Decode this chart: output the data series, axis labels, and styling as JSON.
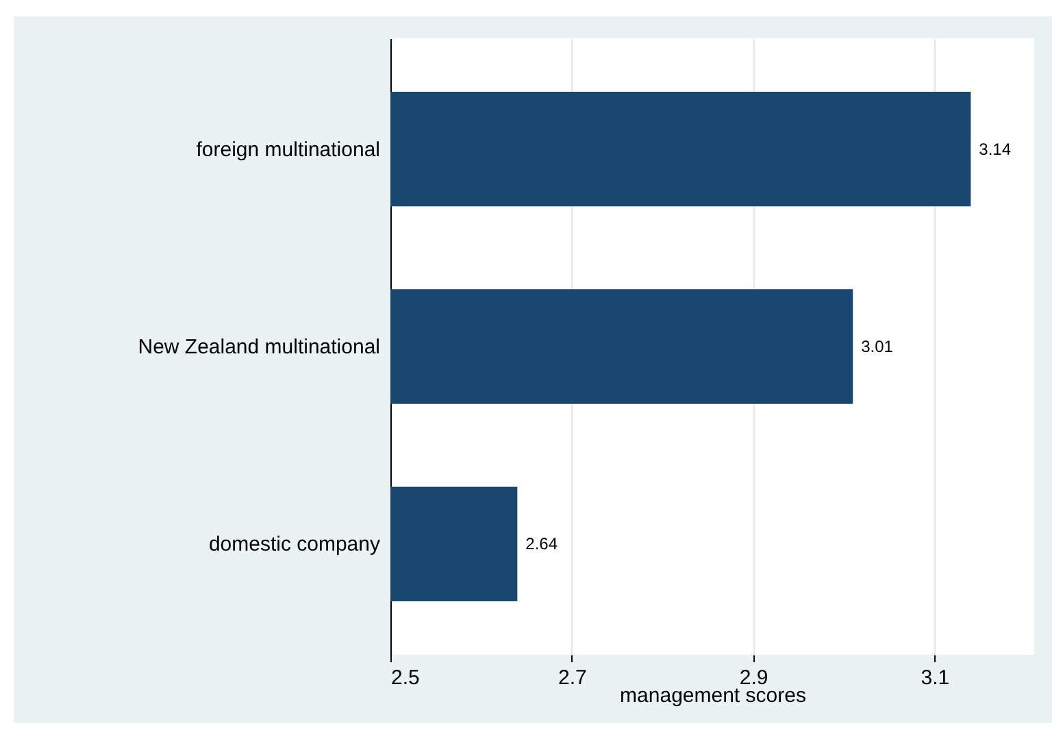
{
  "chart_data": {
    "type": "bar",
    "orientation": "horizontal",
    "xlabel": "management scores",
    "categories": [
      "foreign multinational",
      "New Zealand multinational",
      "domestic company"
    ],
    "values": [
      3.14,
      3.01,
      2.64
    ],
    "color": "#1a476f",
    "xlim": [
      2.5,
      3.21
    ],
    "xticks": [
      2.5,
      2.7,
      2.9,
      3.1
    ],
    "grid": "x",
    "data_labels": true
  }
}
